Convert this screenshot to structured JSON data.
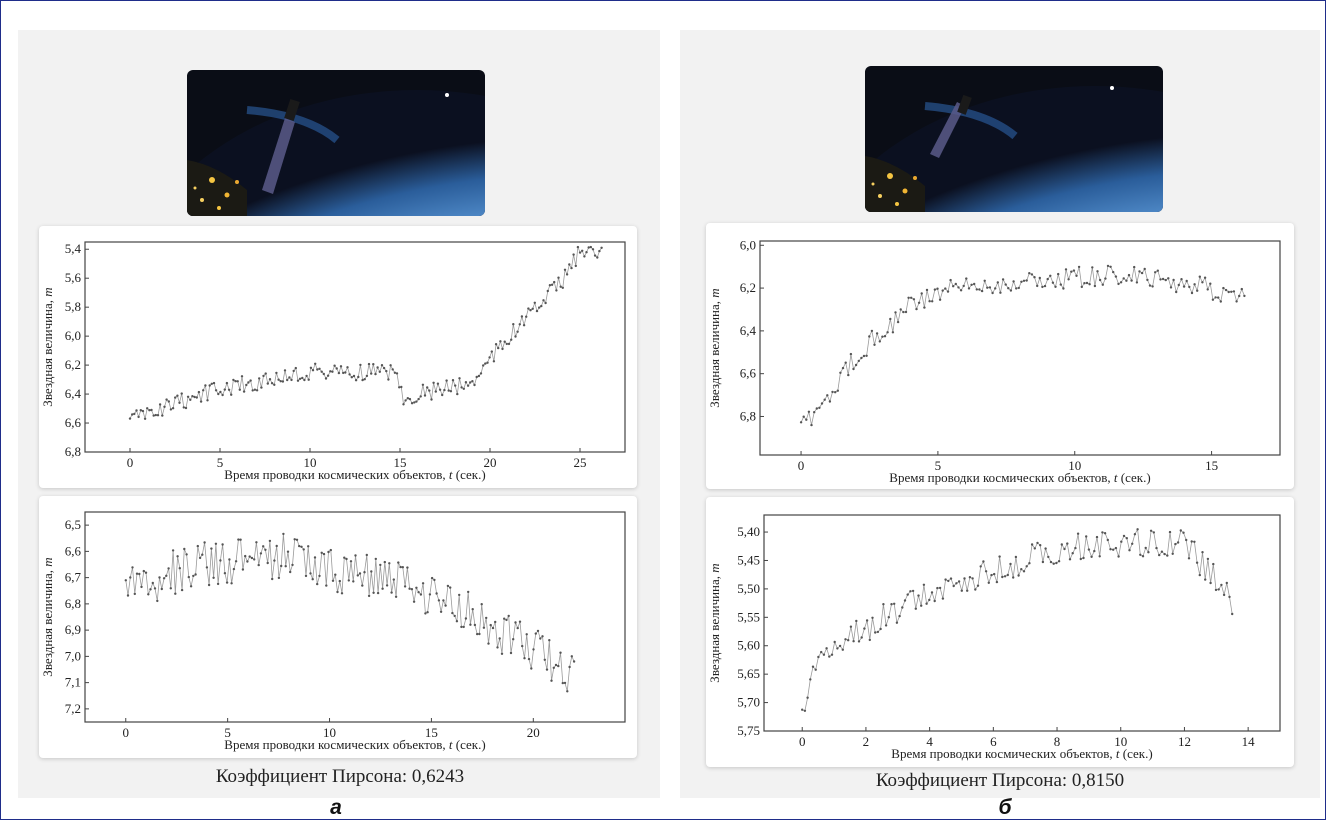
{
  "figure": {
    "panels": [
      {
        "id": "a",
        "letter": "а",
        "pearson_label": "Коэффициент Пирсона: 0,6243",
        "image_alt_icon": "satellite-over-earth-image"
      },
      {
        "id": "b",
        "letter": "б",
        "pearson_label": "Коэффициент Пирсона: 0,8150",
        "image_alt_icon": "satellite-over-earth-image"
      }
    ]
  },
  "colors": {
    "series": "#9a9a9a",
    "marker": "#555555",
    "axis": "#444444",
    "panel_bg": "#f2f2f2",
    "frame": "#1f2d8a"
  },
  "chart_data": [
    {
      "id": "a1",
      "type": "line",
      "xlabel_prefix": "Время проводки космических объектов, ",
      "xlabel_var": "t",
      "xlabel_suffix": " (сек.)",
      "ylabel_prefix": "Звездная величина, ",
      "ylabel_var": "m",
      "xlim": [
        -2.5,
        27.5
      ],
      "ylim": [
        6.8,
        5.35
      ],
      "xticks": [
        0,
        5,
        10,
        15,
        20,
        25
      ],
      "yticks": [
        5.4,
        5.6,
        5.8,
        6.0,
        6.2,
        6.4,
        6.6,
        6.8
      ],
      "ytick_labels": [
        "5,4",
        "5,6",
        "5,8",
        "6,0",
        "6,2",
        "6,4",
        "6,6",
        "6,8"
      ],
      "inverted_y": true,
      "x_range": [
        0,
        26.2
      ],
      "points": 220,
      "trend": [
        [
          0,
          6.58
        ],
        [
          5,
          6.36
        ],
        [
          10,
          6.25
        ],
        [
          14.7,
          6.24
        ],
        [
          15.2,
          6.42
        ],
        [
          19,
          6.32
        ],
        [
          20,
          6.15
        ],
        [
          22,
          5.88
        ],
        [
          24,
          5.62
        ],
        [
          25,
          5.42
        ],
        [
          26.2,
          5.44
        ]
      ],
      "noise": 0.06
    },
    {
      "id": "a2",
      "type": "line",
      "xlabel_prefix": "Время проводки космических объектов, ",
      "xlabel_var": "t",
      "xlabel_suffix": " (сек.)",
      "ylabel_prefix": "Звездная величина, ",
      "ylabel_var": "m",
      "xlim": [
        -2,
        24.5
      ],
      "ylim": [
        7.25,
        6.45
      ],
      "xticks": [
        0,
        5,
        10,
        15,
        20
      ],
      "yticks": [
        6.5,
        6.6,
        6.7,
        6.8,
        6.9,
        7.0,
        7.1,
        7.2
      ],
      "ytick_labels": [
        "6,5",
        "6,6",
        "6,7",
        "6,8",
        "6,9",
        "7,0",
        "7,1",
        "7,2"
      ],
      "inverted_y": true,
      "x_range": [
        0,
        22
      ],
      "points": 200,
      "trend": [
        [
          0,
          6.73
        ],
        [
          4,
          6.65
        ],
        [
          8,
          6.62
        ],
        [
          10,
          6.66
        ],
        [
          14,
          6.74
        ],
        [
          16,
          6.82
        ],
        [
          18,
          6.88
        ],
        [
          20,
          6.98
        ],
        [
          22,
          7.06
        ]
      ],
      "noise": 0.09
    },
    {
      "id": "b1",
      "type": "line",
      "xlabel_prefix": "Время проводки космических объектов, ",
      "xlabel_var": "t",
      "xlabel_suffix": " (сек.)",
      "ylabel_prefix": "Звездная величина, ",
      "ylabel_var": "m",
      "xlim": [
        -1.5,
        17.5
      ],
      "ylim": [
        6.98,
        5.98
      ],
      "xticks": [
        0,
        5,
        10,
        15
      ],
      "yticks": [
        6.0,
        6.2,
        6.4,
        6.6,
        6.8
      ],
      "ytick_labels": [
        "6,0",
        "6,2",
        "6,4",
        "6,6",
        "6,8"
      ],
      "inverted_y": true,
      "x_range": [
        0,
        16.2
      ],
      "points": 170,
      "trend": [
        [
          0,
          6.84
        ],
        [
          1,
          6.72
        ],
        [
          2,
          6.52
        ],
        [
          3,
          6.4
        ],
        [
          4,
          6.28
        ],
        [
          5,
          6.22
        ],
        [
          7,
          6.18
        ],
        [
          10,
          6.15
        ],
        [
          12,
          6.14
        ],
        [
          14,
          6.18
        ],
        [
          16.2,
          6.24
        ]
      ],
      "noise": 0.05
    },
    {
      "id": "b2",
      "type": "line",
      "xlabel_prefix": "Время проводки космических объектов, ",
      "xlabel_var": "t",
      "xlabel_suffix": " (сек.)",
      "ylabel_prefix": "Звездная величина, ",
      "ylabel_var": "m",
      "xlim": [
        -1.2,
        15.0
      ],
      "ylim": [
        5.75,
        5.37
      ],
      "xticks": [
        0,
        2,
        4,
        6,
        8,
        10,
        12,
        14
      ],
      "yticks": [
        5.4,
        5.45,
        5.5,
        5.55,
        5.6,
        5.65,
        5.7,
        5.75
      ],
      "ytick_labels": [
        "5,40",
        "5,45",
        "5,50",
        "5,55",
        "5,60",
        "5,65",
        "5,70",
        "5,75"
      ],
      "inverted_y": true,
      "x_range": [
        0,
        13.5
      ],
      "points": 160,
      "trend": [
        [
          0,
          5.72
        ],
        [
          0.5,
          5.62
        ],
        [
          2,
          5.57
        ],
        [
          4,
          5.5
        ],
        [
          6,
          5.47
        ],
        [
          8,
          5.43
        ],
        [
          10,
          5.42
        ],
        [
          12,
          5.42
        ],
        [
          13.5,
          5.52
        ]
      ],
      "noise": 0.025
    }
  ]
}
